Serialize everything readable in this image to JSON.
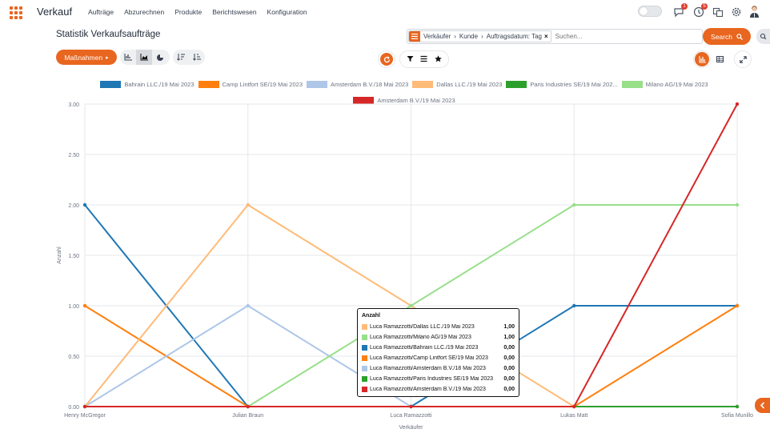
{
  "app": {
    "name": "Verkauf",
    "menu": [
      "Aufträge",
      "Abzurechnen",
      "Produkte",
      "Berichtswesen",
      "Konfiguration"
    ],
    "messages_badge": "1",
    "activities_badge": "5"
  },
  "page": {
    "title": "Statistik Verkaufsaufträge",
    "actions_label": "Maßnahmen"
  },
  "search": {
    "facet_parts": [
      "Verkäufer",
      "Kunde",
      "Auftragsdatum: Tag"
    ],
    "placeholder": "Suchen...",
    "button_label": "Search"
  },
  "colors": {
    "accent": "#e8661f"
  },
  "chart_data": {
    "type": "line",
    "ylabel": "Anzahl",
    "xlabel": "Verkäufer",
    "ylim": [
      0,
      3
    ],
    "y_ticks": [
      "0.00",
      "0.50",
      "1.00",
      "1.50",
      "2.00",
      "2.50",
      "3.00"
    ],
    "grid": true,
    "legend_position": "top",
    "categories": [
      "Henry McGregor",
      "Julian Braun",
      "Luca Ramazzotti",
      "Lukas Matt",
      "Sofia Munillo"
    ],
    "series": [
      {
        "name": "Bahrain LLC./19 Mai 2023",
        "color": "#1f77b4",
        "values": [
          2,
          0,
          0,
          1,
          1
        ]
      },
      {
        "name": "Camp Lintfort SE/19 Mai 2023",
        "color": "#ff7f0e",
        "values": [
          1,
          0,
          0,
          0,
          1
        ]
      },
      {
        "name": "Amsterdam B.V./18 Mai 2023",
        "color": "#aec7e8",
        "values": [
          0,
          1,
          0,
          0,
          0
        ]
      },
      {
        "name": "Dallas LLC./19 Mai 2023",
        "color": "#ffbb78",
        "values": [
          0,
          2,
          1,
          0,
          0
        ]
      },
      {
        "name": "Paris Industries SE/19 Mai 202...",
        "color": "#2ca02c",
        "values": [
          0,
          0,
          0,
          0,
          0
        ]
      },
      {
        "name": "Milano AG/19 Mai 2023",
        "color": "#98df8a",
        "values": [
          0,
          0,
          1,
          2,
          2
        ]
      },
      {
        "name": "Amsterdam B.V./19 Mai 2023",
        "color": "#d62728",
        "values": [
          0,
          0,
          0,
          0,
          3
        ]
      }
    ]
  },
  "tooltip": {
    "title": "Anzahl",
    "rows": [
      {
        "label": "Luca Ramazzotti/Dallas LLC./19 Mai 2023",
        "value": "1,00",
        "color": "#ffbb78"
      },
      {
        "label": "Luca Ramazzotti/Milano AG/19 Mai 2023",
        "value": "1,00",
        "color": "#98df8a"
      },
      {
        "label": "Luca Ramazzotti/Bahrain LLC./19 Mai 2023",
        "value": "0,00",
        "color": "#1f77b4"
      },
      {
        "label": "Luca Ramazzotti/Camp Lintfort SE/19 Mai 2023",
        "value": "0,00",
        "color": "#ff7f0e"
      },
      {
        "label": "Luca Ramazzotti/Amsterdam B.V./18 Mai 2023",
        "value": "0,00",
        "color": "#aec7e8"
      },
      {
        "label": "Luca Ramazzotti/Paris Industries SE/19 Mai 2023",
        "value": "0,00",
        "color": "#2ca02c"
      },
      {
        "label": "Luca Ramazzotti/Amsterdam B.V./19 Mai 2023",
        "value": "0,00",
        "color": "#d62728"
      }
    ]
  }
}
